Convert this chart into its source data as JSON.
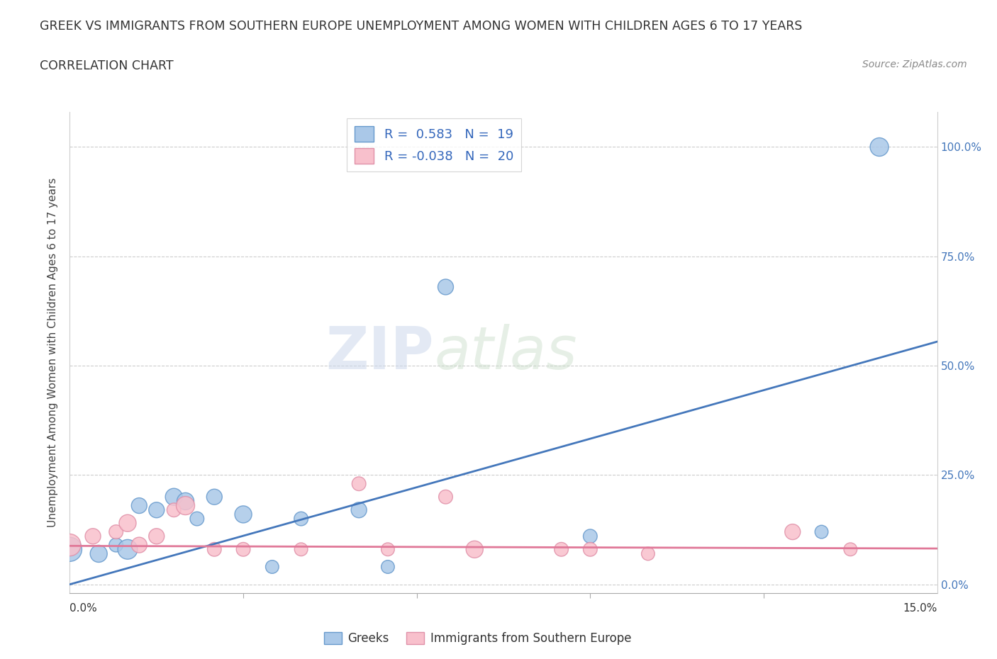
{
  "title_line1": "GREEK VS IMMIGRANTS FROM SOUTHERN EUROPE UNEMPLOYMENT AMONG WOMEN WITH CHILDREN AGES 6 TO 17 YEARS",
  "title_line2": "CORRELATION CHART",
  "source": "Source: ZipAtlas.com",
  "ylabel": "Unemployment Among Women with Children Ages 6 to 17 years",
  "xlim": [
    0.0,
    0.15
  ],
  "ylim": [
    -0.02,
    1.08
  ],
  "yticks": [
    0.0,
    0.25,
    0.5,
    0.75,
    1.0
  ],
  "yticklabels_right": [
    "0.0%",
    "25.0%",
    "50.0%",
    "75.0%",
    "100.0%"
  ],
  "grid_color": "#cccccc",
  "legend_label1": "Greeks",
  "legend_label2": "Immigrants from Southern Europe",
  "r1": 0.583,
  "n1": 19,
  "r2": -0.038,
  "n2": 20,
  "blue_color": "#aac8e8",
  "blue_edge_color": "#6699cc",
  "blue_line_color": "#4477bb",
  "pink_color": "#f8c0cc",
  "pink_edge_color": "#e090a8",
  "pink_line_color": "#e07898",
  "blue_line_x0": 0.0,
  "blue_line_y0": 0.0,
  "blue_line_x1": 0.15,
  "blue_line_y1": 0.555,
  "pink_line_x0": 0.0,
  "pink_line_y0": 0.088,
  "pink_line_x1": 0.15,
  "pink_line_y1": 0.082,
  "blue_scatter": {
    "x": [
      0.0,
      0.005,
      0.008,
      0.01,
      0.012,
      0.015,
      0.018,
      0.02,
      0.022,
      0.025,
      0.03,
      0.035,
      0.04,
      0.05,
      0.055,
      0.065,
      0.09,
      0.13,
      0.14
    ],
    "y": [
      0.08,
      0.07,
      0.09,
      0.08,
      0.18,
      0.17,
      0.2,
      0.19,
      0.15,
      0.2,
      0.16,
      0.04,
      0.15,
      0.17,
      0.04,
      0.68,
      0.11,
      0.12,
      1.0
    ],
    "size": [
      600,
      300,
      200,
      400,
      250,
      250,
      300,
      300,
      200,
      250,
      300,
      180,
      200,
      250,
      180,
      250,
      200,
      180,
      350
    ]
  },
  "pink_scatter": {
    "x": [
      0.0,
      0.004,
      0.008,
      0.01,
      0.012,
      0.015,
      0.018,
      0.02,
      0.025,
      0.03,
      0.04,
      0.05,
      0.055,
      0.065,
      0.07,
      0.085,
      0.09,
      0.1,
      0.125,
      0.135
    ],
    "y": [
      0.09,
      0.11,
      0.12,
      0.14,
      0.09,
      0.11,
      0.17,
      0.18,
      0.08,
      0.08,
      0.08,
      0.23,
      0.08,
      0.2,
      0.08,
      0.08,
      0.08,
      0.07,
      0.12,
      0.08
    ],
    "size": [
      500,
      250,
      200,
      300,
      250,
      250,
      200,
      350,
      200,
      200,
      180,
      200,
      180,
      200,
      300,
      200,
      200,
      180,
      250,
      180
    ]
  }
}
